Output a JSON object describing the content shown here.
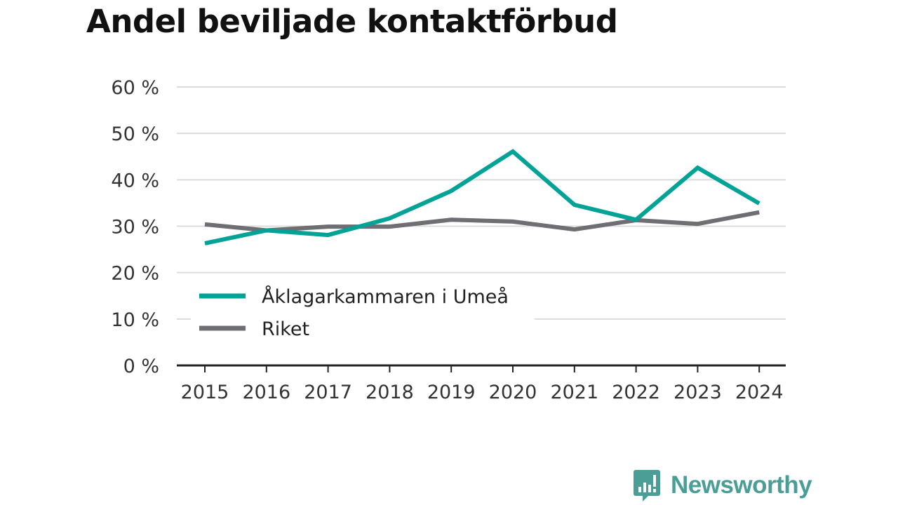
{
  "title": "Andel beviljade kontaktförbud",
  "brand": {
    "name": "Newsworthy",
    "icon": "newsworthy-logo-icon",
    "color": "#4a9e95"
  },
  "chart_data": {
    "type": "line",
    "x": [
      "2015",
      "2016",
      "2017",
      "2018",
      "2019",
      "2020",
      "2021",
      "2022",
      "2023",
      "2024"
    ],
    "series": [
      {
        "name": "Åklagarkammaren i Umeå",
        "color": "#00a396",
        "values": [
          26.3,
          29.1,
          28.1,
          31.7,
          37.6,
          46.1,
          34.6,
          31.4,
          42.6,
          34.9
        ]
      },
      {
        "name": "Riket",
        "color": "#6e6e73",
        "values": [
          30.4,
          29.1,
          29.9,
          29.9,
          31.4,
          31.0,
          29.3,
          31.3,
          30.5,
          33.0
        ]
      }
    ],
    "ylim": [
      0,
      60
    ],
    "yticks": [
      0,
      10,
      20,
      30,
      40,
      50,
      60
    ],
    "ytick_labels": [
      "0 %",
      "10 %",
      "20 %",
      "30 %",
      "40 %",
      "50 %",
      "60 %"
    ],
    "grid": true,
    "legend": "bottom-left"
  }
}
